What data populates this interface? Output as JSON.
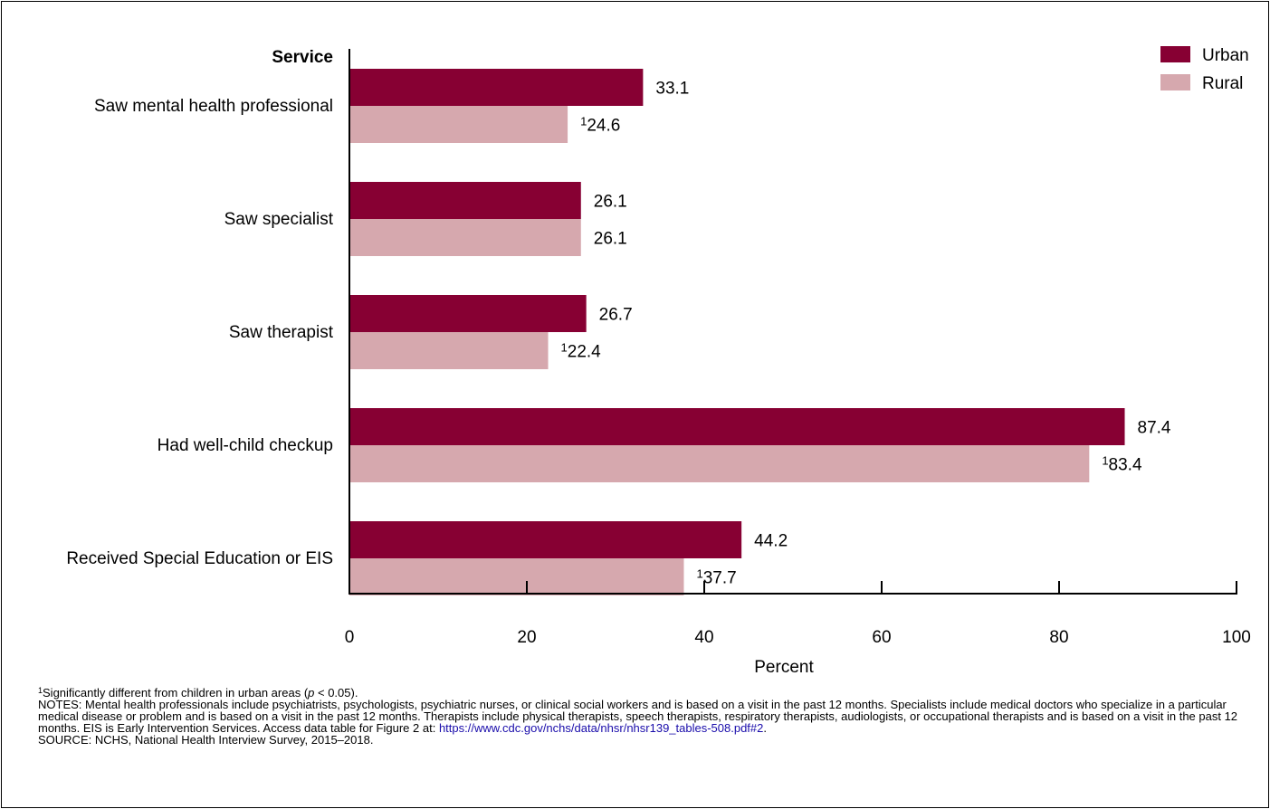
{
  "chart_data": {
    "type": "bar",
    "orientation": "horizontal",
    "category_axis_label": "Service",
    "categories": [
      "Saw mental health professional",
      "Saw specialist",
      "Saw therapist",
      "Had well-child checkup",
      "Received Special Education or EIS"
    ],
    "series": [
      {
        "name": "Urban",
        "color": "#870033",
        "values": [
          33.1,
          26.1,
          26.7,
          87.4,
          44.2
        ],
        "labels": [
          "33.1",
          "26.1",
          "26.7",
          "87.4",
          "44.2"
        ],
        "significant": [
          false,
          false,
          false,
          false,
          false
        ]
      },
      {
        "name": "Rural",
        "color": "#d6a8ae",
        "values": [
          24.6,
          26.1,
          22.4,
          83.4,
          37.7
        ],
        "labels": [
          "24.6",
          "26.1",
          "22.4",
          "83.4",
          "37.7"
        ],
        "significant": [
          true,
          false,
          true,
          true,
          true
        ]
      }
    ],
    "significance_marker": "1",
    "xlabel": "Percent",
    "xlim": [
      0,
      100
    ],
    "xticks": [
      0,
      20,
      40,
      60,
      80,
      100
    ],
    "xtick_labels": [
      "0",
      "20",
      "40",
      "60",
      "80",
      "100"
    ],
    "legend_position": "top-right",
    "grid": false
  },
  "notes": {
    "footnote_marker": "1",
    "footnote_pre": "Significantly different from children in urban areas (",
    "footnote_p": "p",
    "footnote_post": " < 0.05).",
    "notes_text": "NOTES: Mental health professionals include psychiatrists, psychologists, psychiatric nurses, or clinical social workers and is based on a visit in the past 12 months. Specialists include medical doctors who specialize in a particular medical disease or problem and is based on a visit in the past 12 months. Therapists include physical therapists, speech therapists, respiratory therapists, audiologists, or occupational therapists and is based on a visit in the past 12 months. EIS is Early Intervention Services. Access data table for Figure 2 at: ",
    "notes_link": "https://www.cdc.gov/nchs/data/nhsr/nhsr139_tables-508.pdf#2",
    "notes_end": ".",
    "source_text": "SOURCE: NCHS, National Health Interview Survey, 2015–2018."
  }
}
